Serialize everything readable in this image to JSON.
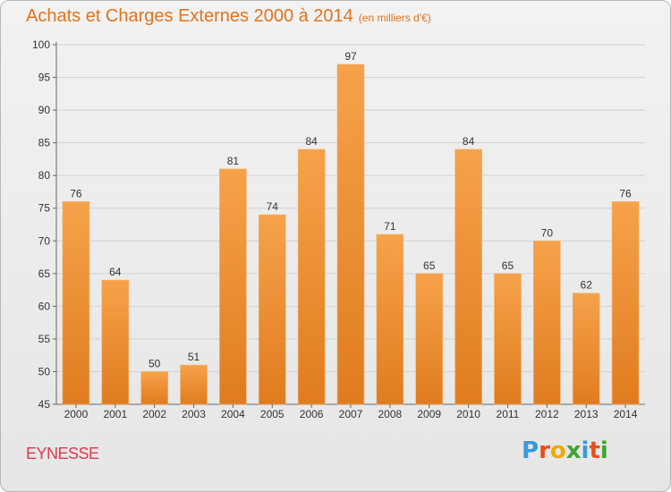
{
  "title": "Achats et Charges Externes 2000 à 2014",
  "subtitle": "(en milliers d'€)",
  "commune": "EYNESSE",
  "logo": {
    "letters": [
      "P",
      "r",
      "o",
      "x",
      "i",
      "t",
      "i"
    ],
    "colors": [
      "#3a9ad9",
      "#e94e1b",
      "#f2a900",
      "#3fa535",
      "#3a9ad9",
      "#e94e1b",
      "#3fa535"
    ]
  },
  "colors": {
    "bar_top": "#f6a24a",
    "bar_bottom": "#e07c1f",
    "title": "#e2731d",
    "commune": "#e0384e"
  },
  "chart_data": {
    "type": "bar",
    "categories": [
      "2000",
      "2001",
      "2002",
      "2003",
      "2004",
      "2005",
      "2006",
      "2007",
      "2008",
      "2009",
      "2010",
      "2011",
      "2012",
      "2013",
      "2014"
    ],
    "values": [
      76,
      64,
      50,
      51,
      81,
      74,
      84,
      97,
      71,
      65,
      84,
      65,
      70,
      62,
      76
    ],
    "title": "Achats et Charges Externes 2000 à 2014",
    "ylim": [
      45,
      100
    ],
    "yticks": [
      45,
      50,
      55,
      60,
      65,
      70,
      75,
      80,
      85,
      90,
      95,
      100
    ],
    "grid": true,
    "legend": "none"
  }
}
